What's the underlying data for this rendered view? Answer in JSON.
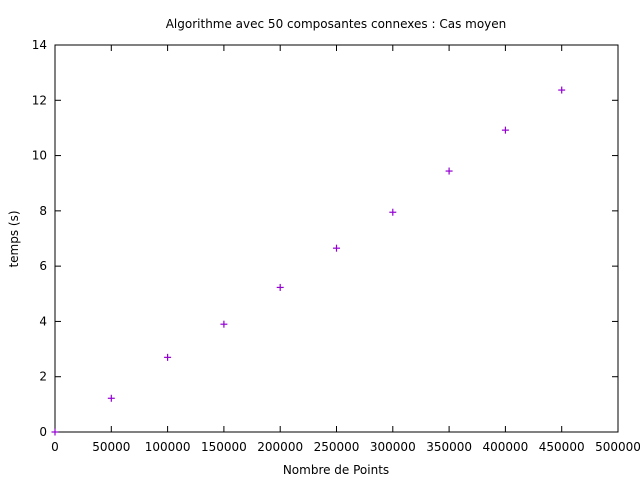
{
  "chart_data": {
    "type": "scatter",
    "title": "Algorithme avec 50 composantes connexes : Cas moyen",
    "xlabel": "Nombre de Points",
    "ylabel": "temps (s)",
    "xlim": [
      0,
      500000
    ],
    "ylim": [
      0,
      14
    ],
    "x_ticks": [
      0,
      50000,
      100000,
      150000,
      200000,
      250000,
      300000,
      350000,
      400000,
      450000,
      500000
    ],
    "x_tick_labels": [
      "0",
      "50000",
      "100000",
      "150000",
      "200000",
      "250000",
      "300000",
      "350000",
      "400000",
      "450000",
      "500000"
    ],
    "y_ticks": [
      0,
      2,
      4,
      6,
      8,
      10,
      12,
      14
    ],
    "y_tick_labels": [
      "0",
      "2",
      "4",
      "6",
      "8",
      "10",
      "12",
      "14"
    ],
    "grid": false,
    "marker": "+",
    "color": "#9400d3",
    "series": [
      {
        "x": [
          0,
          50000,
          100000,
          150000,
          200000,
          250000,
          300000,
          350000,
          400000,
          450000
        ],
        "y": [
          0,
          1.22,
          2.7,
          3.9,
          5.23,
          6.65,
          7.95,
          9.44,
          10.92,
          12.37
        ]
      }
    ]
  }
}
